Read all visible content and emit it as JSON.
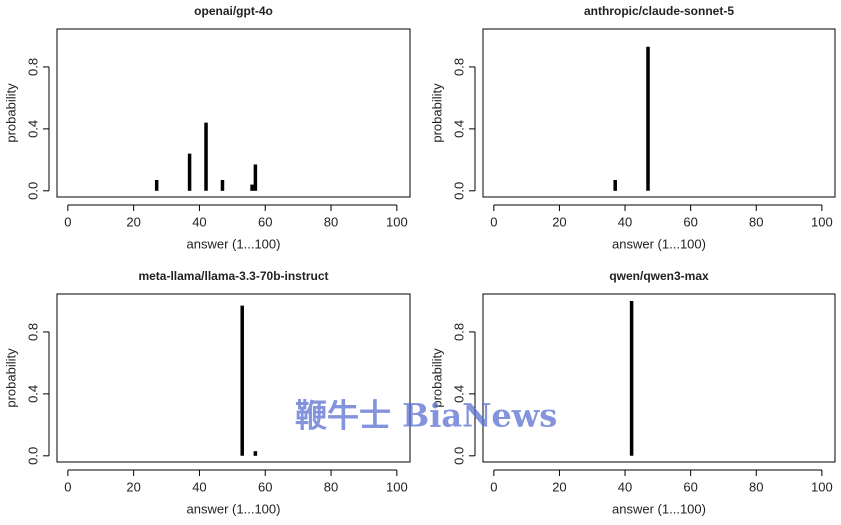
{
  "chart_data": [
    {
      "type": "bar",
      "title": "openai/gpt-4o",
      "x_label": "answer (1...100)",
      "y_label": "probability",
      "x": [
        27,
        37,
        42,
        47,
        56,
        57
      ],
      "values": [
        0.07,
        0.24,
        0.44,
        0.07,
        0.04,
        0.17
      ],
      "color": "#000000",
      "xlim": [
        -3.3,
        104
      ],
      "ylim": [
        -0.04,
        1.045
      ],
      "xticks": [
        0,
        20,
        40,
        60,
        80,
        100
      ],
      "yticks": [
        {
          "value": 0,
          "label": "0.0"
        },
        0.4,
        0.8
      ]
    },
    {
      "type": "bar",
      "title": "anthropic/claude-sonnet-5",
      "x_label": "answer (1...100)",
      "y_label": "probability",
      "x": [
        37,
        47
      ],
      "values": [
        0.07,
        0.93
      ],
      "color": "#000000",
      "xlim": [
        -3.3,
        104
      ],
      "ylim": [
        -0.04,
        1.045
      ],
      "xticks": [
        0,
        20,
        40,
        60,
        80,
        100
      ],
      "yticks": [
        {
          "value": 0,
          "label": "0.0"
        },
        0.4,
        0.8
      ]
    },
    {
      "type": "bar",
      "title": "meta-llama/llama-3.3-70b-instruct",
      "x_label": "answer (1...100)",
      "y_label": "probability",
      "x": [
        53,
        57
      ],
      "values": [
        0.97,
        0.03
      ],
      "color": "#000000",
      "xlim": [
        -3.3,
        104
      ],
      "ylim": [
        -0.04,
        1.045
      ],
      "xticks": [
        0,
        20,
        40,
        60,
        80,
        100
      ],
      "yticks": [
        {
          "value": 0,
          "label": "0.0"
        },
        0.4,
        0.8
      ]
    },
    {
      "type": "bar",
      "title": "qwen/qwen3-max",
      "x_label": "answer (1...100)",
      "y_label": "probability",
      "x": [
        42
      ],
      "values": [
        1.0
      ],
      "color": "#000000",
      "xlim": [
        -3.3,
        104
      ],
      "ylim": [
        -0.04,
        1.045
      ],
      "xticks": [
        0,
        20,
        40,
        60,
        80,
        100
      ],
      "yticks": [
        {
          "value": 0,
          "label": "0.0"
        },
        0.4,
        0.8
      ]
    }
  ],
  "watermark": "鞭牛士 BiaNews"
}
